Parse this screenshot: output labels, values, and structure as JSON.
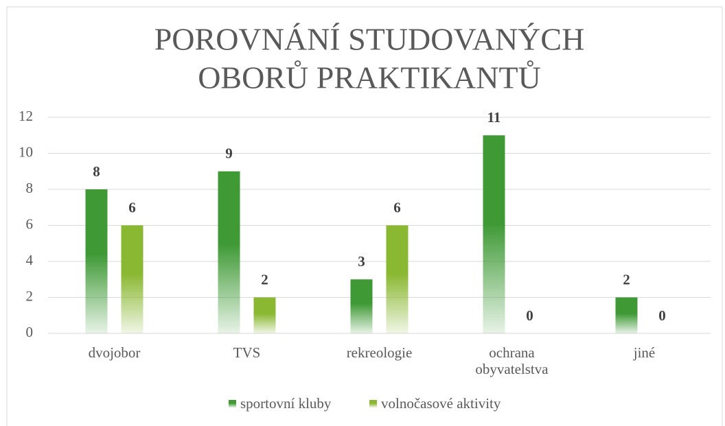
{
  "chart_data": {
    "type": "bar",
    "title": [
      "POROVNÁNÍ STUDOVANÝCH",
      "OBORŮ PRAKTIKANTŮ"
    ],
    "categories": [
      "dvojobor",
      "TVS",
      "rekreologie",
      "ochrana obyvatelstva",
      "jiné"
    ],
    "series": [
      {
        "name": "sportovní kluby",
        "color": "#3f9a36",
        "values": [
          8,
          9,
          3,
          11,
          2
        ]
      },
      {
        "name": "volnočasové aktivity",
        "color": "#8ab832",
        "values": [
          6,
          2,
          6,
          0,
          0
        ]
      }
    ],
    "ylim": [
      0,
      12
    ],
    "yticks": [
      0,
      2,
      4,
      6,
      8,
      10,
      12
    ],
    "grid": true,
    "legend": "bottom"
  }
}
